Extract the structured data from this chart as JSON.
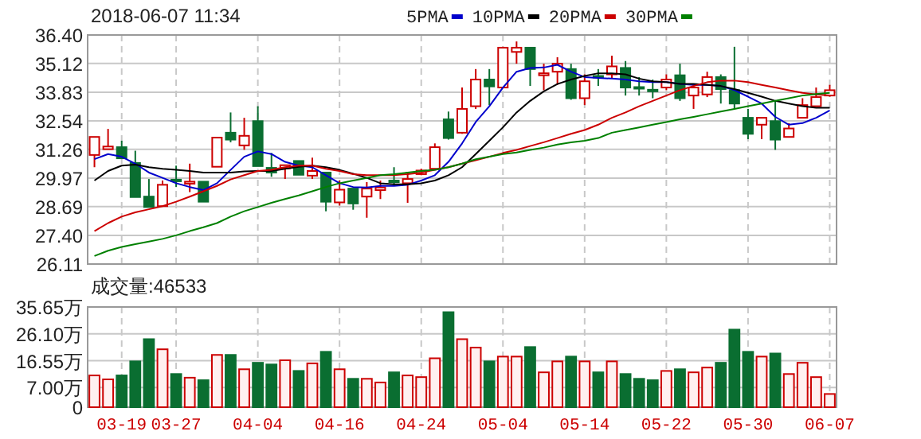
{
  "chart_data": [
    {
      "type": "candlestick",
      "title": "2018-06-07 11:34",
      "categories": [
        null,
        null,
        null,
        null,
        null,
        null,
        null,
        null,
        null,
        null,
        null,
        null,
        null,
        null,
        null,
        null,
        null,
        null,
        null,
        null,
        null,
        null,
        null,
        null,
        null,
        null,
        null,
        null,
        null,
        null,
        null,
        null,
        null,
        null,
        null,
        null,
        null,
        null,
        null,
        null,
        null,
        null,
        null,
        null,
        null,
        null,
        null,
        null,
        null,
        null,
        null,
        null,
        null,
        null,
        null
      ],
      "ohlc": [
        [
          31.01,
          31.82,
          30.46,
          31.82
        ],
        [
          31.27,
          32.18,
          31.27,
          31.39
        ],
        [
          31.36,
          31.65,
          30.86,
          30.86
        ],
        [
          30.65,
          31.2,
          29.12,
          29.12
        ],
        [
          29.14,
          29.93,
          28.67,
          28.67
        ],
        [
          28.71,
          29.86,
          28.71,
          29.67
        ],
        [
          29.9,
          30.53,
          29.57,
          29.88
        ],
        [
          29.72,
          30.62,
          29.34,
          29.81
        ],
        [
          29.81,
          29.81,
          28.91,
          28.91
        ],
        [
          30.48,
          31.79,
          30.48,
          31.79
        ],
        [
          32.01,
          32.92,
          31.58,
          31.7
        ],
        [
          31.44,
          32.68,
          31.24,
          31.87
        ],
        [
          32.53,
          33.2,
          30.51,
          30.51
        ],
        [
          30.43,
          31.1,
          30.03,
          30.22
        ],
        [
          30.41,
          30.55,
          29.93,
          30.55
        ],
        [
          30.74,
          30.74,
          30.12,
          30.12
        ],
        [
          30.08,
          30.89,
          29.93,
          30.29
        ],
        [
          30.22,
          30.22,
          28.48,
          28.91
        ],
        [
          28.88,
          29.86,
          28.74,
          29.45
        ],
        [
          29.5,
          29.5,
          28.55,
          28.83
        ],
        [
          29.14,
          29.79,
          28.19,
          29.5
        ],
        [
          29.43,
          29.86,
          29.03,
          29.55
        ],
        [
          29.86,
          30.46,
          29.62,
          29.81
        ],
        [
          29.74,
          30.22,
          28.86,
          29.93
        ],
        [
          30.15,
          30.39,
          30.1,
          30.31
        ],
        [
          30.39,
          31.53,
          30.34,
          31.36
        ],
        [
          32.61,
          32.96,
          31.7,
          31.77
        ],
        [
          32.01,
          34.04,
          31.96,
          33.08
        ],
        [
          33.2,
          34.87,
          33.08,
          34.4
        ],
        [
          34.4,
          34.87,
          33.25,
          34.09
        ],
        [
          34.04,
          35.87,
          34.04,
          35.83
        ],
        [
          35.64,
          36.11,
          35.11,
          35.83
        ],
        [
          35.83,
          35.83,
          34.11,
          34.87
        ],
        [
          34.59,
          35.11,
          33.92,
          34.68
        ],
        [
          34.75,
          35.4,
          34.16,
          35.11
        ],
        [
          34.87,
          35.11,
          33.49,
          33.56
        ],
        [
          33.56,
          34.63,
          33.25,
          34.32
        ],
        [
          34.56,
          34.87,
          34.11,
          34.51
        ],
        [
          34.63,
          35.47,
          34.44,
          34.99
        ],
        [
          34.92,
          35.23,
          33.68,
          34.04
        ],
        [
          34.06,
          34.51,
          33.68,
          34.01
        ],
        [
          33.94,
          34.4,
          33.56,
          33.89
        ],
        [
          34.04,
          34.63,
          33.92,
          34.4
        ],
        [
          34.59,
          35.11,
          33.44,
          33.56
        ],
        [
          33.68,
          34.16,
          33.08,
          34.04
        ],
        [
          33.73,
          34.75,
          33.61,
          34.51
        ],
        [
          34.51,
          34.63,
          33.32,
          33.97
        ],
        [
          33.92,
          35.87,
          33.08,
          33.32
        ],
        [
          32.68,
          33.08,
          31.72,
          31.96
        ],
        [
          32.37,
          32.68,
          31.72,
          32.68
        ],
        [
          32.53,
          33.44,
          31.24,
          31.7
        ],
        [
          31.82,
          32.44,
          31.82,
          32.2
        ],
        [
          32.68,
          33.56,
          32.68,
          33.25
        ],
        [
          33.2,
          34.04,
          33.2,
          33.61
        ],
        [
          33.68,
          34.16,
          33.63,
          33.92
        ]
      ],
      "series": [
        {
          "name": "5PMA",
          "type": "line",
          "color": "#0000cc",
          "values": [
            30.82,
            31.05,
            30.93,
            30.62,
            30.22,
            29.98,
            29.74,
            29.57,
            29.43,
            29.74,
            30.34,
            30.93,
            31.17,
            31.05,
            30.7,
            30.53,
            30.46,
            30.1,
            29.74,
            29.57,
            29.55,
            29.62,
            29.62,
            29.67,
            29.86,
            30.1,
            30.7,
            31.53,
            32.49,
            33.2,
            34.04,
            34.75,
            34.92,
            34.94,
            35.06,
            34.75,
            34.51,
            34.47,
            34.44,
            34.4,
            34.32,
            34.28,
            34.28,
            34.2,
            34.16,
            34.16,
            34.11,
            33.92,
            33.63,
            33.32,
            32.72,
            32.37,
            32.44,
            32.68,
            33.01
          ]
        },
        {
          "name": "10PMA",
          "type": "line",
          "color": "#000000",
          "values": [
            29.86,
            30.29,
            30.53,
            30.58,
            30.46,
            30.39,
            30.34,
            30.29,
            30.22,
            30.22,
            30.22,
            30.27,
            30.29,
            30.29,
            30.39,
            30.48,
            30.53,
            30.46,
            30.34,
            30.17,
            29.98,
            29.74,
            29.69,
            29.69,
            29.74,
            29.86,
            30.1,
            30.46,
            31.05,
            31.65,
            32.25,
            32.92,
            33.44,
            33.87,
            34.2,
            34.4,
            34.56,
            34.68,
            34.68,
            34.63,
            34.44,
            34.32,
            34.28,
            34.2,
            34.2,
            34.16,
            34.11,
            33.97,
            33.8,
            33.63,
            33.44,
            33.32,
            33.2,
            33.13,
            33.13
          ]
        },
        {
          "name": "20PMA",
          "type": "line",
          "color": "#cc0000",
          "values": [
            27.59,
            27.95,
            28.24,
            28.43,
            28.57,
            28.71,
            28.91,
            29.14,
            29.38,
            29.62,
            29.91,
            30.1,
            30.29,
            30.34,
            30.46,
            30.53,
            30.53,
            30.39,
            30.29,
            30.15,
            30.1,
            30.1,
            30.1,
            30.15,
            30.22,
            30.34,
            30.46,
            30.62,
            30.77,
            30.93,
            31.1,
            31.24,
            31.41,
            31.58,
            31.77,
            31.96,
            32.13,
            32.37,
            32.68,
            32.92,
            33.2,
            33.44,
            33.68,
            33.92,
            34.11,
            34.28,
            34.35,
            34.35,
            34.28,
            34.16,
            34.04,
            33.92,
            33.8,
            33.73,
            33.68
          ]
        },
        {
          "name": "30PMA",
          "type": "line",
          "color": "#008000",
          "values": [
            26.47,
            26.71,
            26.88,
            27.0,
            27.12,
            27.24,
            27.4,
            27.59,
            27.76,
            27.95,
            28.24,
            28.48,
            28.67,
            28.86,
            29.03,
            29.19,
            29.38,
            29.57,
            29.74,
            29.86,
            29.98,
            30.1,
            30.15,
            30.22,
            30.29,
            30.34,
            30.46,
            30.62,
            30.82,
            30.93,
            31.05,
            31.12,
            31.24,
            31.34,
            31.48,
            31.58,
            31.65,
            31.77,
            32.01,
            32.13,
            32.25,
            32.37,
            32.49,
            32.61,
            32.72,
            32.84,
            32.96,
            33.08,
            33.2,
            33.32,
            33.44,
            33.56,
            33.68,
            33.75,
            33.8
          ]
        }
      ],
      "ylim": [
        26.11,
        36.4
      ],
      "yticks": [
        26.11,
        {
          "value": 27.4,
          "label": "27.40"
        },
        28.69,
        29.97,
        31.26,
        32.54,
        33.83,
        35.12,
        {
          "value": 36.4,
          "label": "36.40"
        }
      ],
      "grid": true,
      "legend": "top right",
      "tick_labels": "y"
    },
    {
      "type": "bar",
      "title": "成交量:46533",
      "categories": [
        null,
        null,
        "03-19",
        null,
        null,
        null,
        "03-27",
        null,
        null,
        null,
        null,
        null,
        "04-04",
        null,
        null,
        null,
        null,
        null,
        "04-16",
        null,
        null,
        null,
        null,
        null,
        "04-24",
        null,
        null,
        null,
        null,
        null,
        "05-04",
        null,
        null,
        null,
        null,
        null,
        "05-14",
        null,
        null,
        null,
        null,
        null,
        "05-22",
        null,
        null,
        null,
        null,
        null,
        "05-30",
        null,
        null,
        null,
        null,
        null,
        "06-07"
      ],
      "values": [
        11.3,
        9.9,
        11.3,
        16.3,
        24.2,
        20.6,
        11.8,
        10.5,
        9.6,
        18.6,
        18.6,
        13.5,
        15.8,
        15.2,
        16.7,
        12.9,
        15.6,
        19.7,
        13.5,
        10.1,
        10.1,
        8.8,
        12.4,
        11.3,
        10.7,
        17.4,
        33.8,
        24.2,
        21.2,
        16.3,
        18.0,
        18.0,
        21.4,
        12.4,
        16.3,
        18.0,
        16.3,
        12.4,
        16.3,
        11.8,
        10.1,
        9.6,
        12.9,
        13.5,
        12.4,
        14.1,
        15.8,
        27.6,
        19.7,
        18.0,
        19.1,
        11.8,
        15.8,
        10.7,
        4.7
      ],
      "colors": [
        "#cc0000",
        "#cc0000",
        "#0a6e31",
        "#0a6e31",
        "#0a6e31",
        "#cc0000",
        "#0a6e31",
        "#cc0000",
        "#0a6e31",
        "#cc0000",
        "#0a6e31",
        "#cc0000",
        "#0a6e31",
        "#0a6e31",
        "#cc0000",
        "#0a6e31",
        "#cc0000",
        "#0a6e31",
        "#cc0000",
        "#0a6e31",
        "#cc0000",
        "#cc0000",
        "#0a6e31",
        "#cc0000",
        "#cc0000",
        "#cc0000",
        "#0a6e31",
        "#cc0000",
        "#cc0000",
        "#0a6e31",
        "#cc0000",
        "#cc0000",
        "#0a6e31",
        "#cc0000",
        "#cc0000",
        "#0a6e31",
        "#cc0000",
        "#0a6e31",
        "#cc0000",
        "#0a6e31",
        "#0a6e31",
        "#0a6e31",
        "#cc0000",
        "#0a6e31",
        "#cc0000",
        "#cc0000",
        "#0a6e31",
        "#0a6e31",
        "#0a6e31",
        "#cc0000",
        "#0a6e31",
        "#cc0000",
        "#cc0000",
        "#cc0000",
        "#cc0000"
      ],
      "ylim": [
        0,
        35.65
      ],
      "yticks": [
        0,
        {
          "value": 7.0,
          "label": "7.00万"
        },
        {
          "value": 16.55,
          "label": "16.55万"
        },
        {
          "value": 26.1,
          "label": "26.10万"
        },
        {
          "value": 35.65,
          "label": "35.65万"
        }
      ],
      "grid": true
    }
  ]
}
